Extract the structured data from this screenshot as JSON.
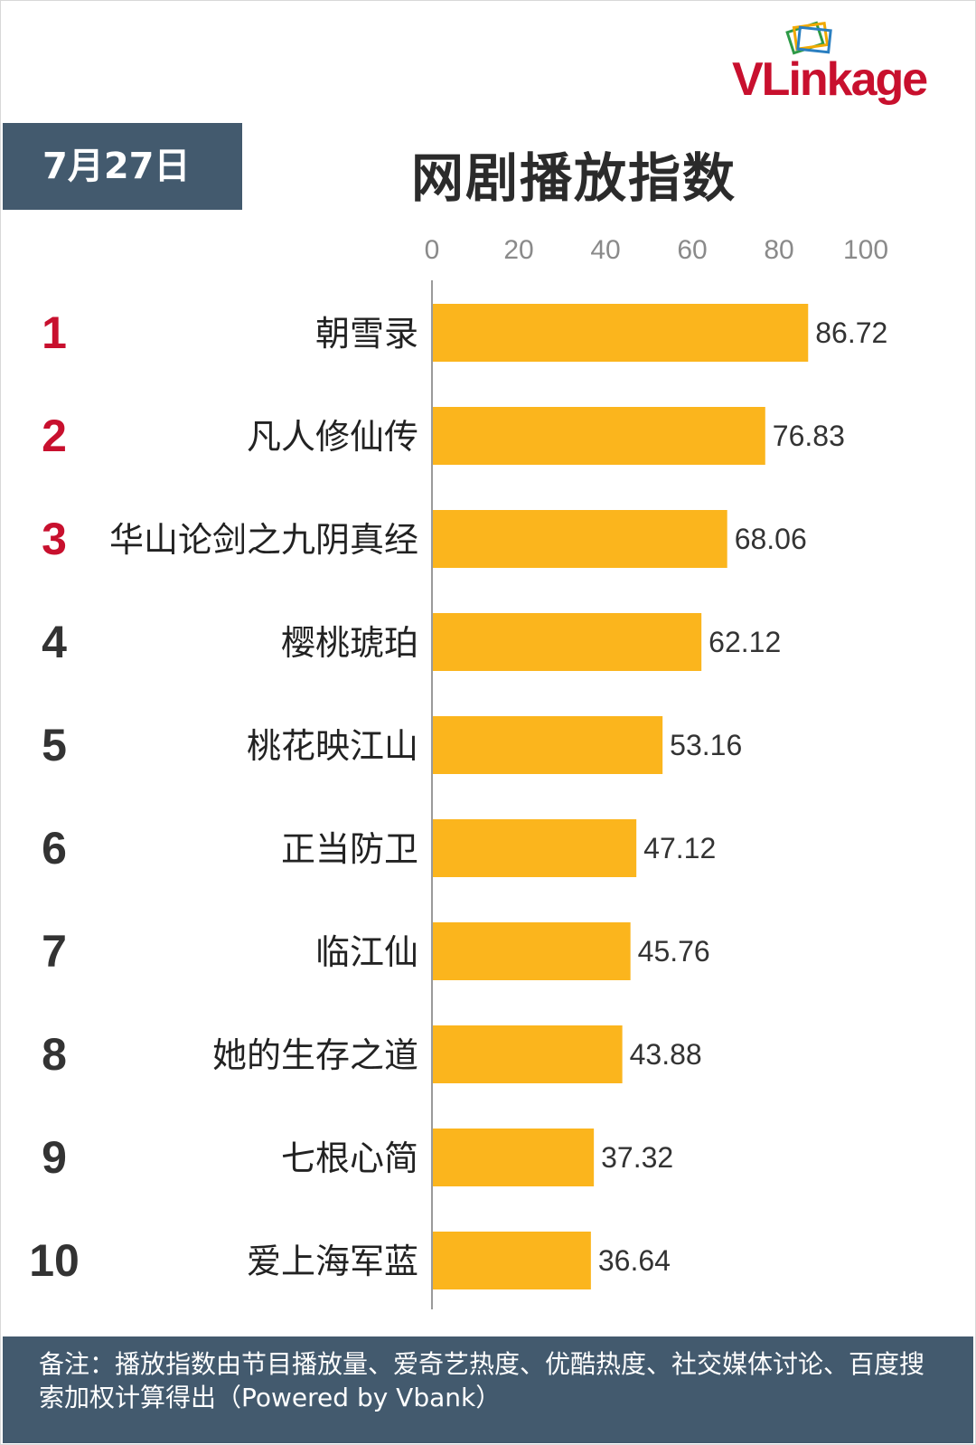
{
  "brand": {
    "name": "VLinkage"
  },
  "header": {
    "date": "7月27日",
    "title": "网剧播放指数"
  },
  "footer": {
    "note": "备注：播放指数由节目播放量、爱奇艺热度、优酷热度、社交媒体讨论、百度搜索加权计算得出（Powered by Vbank）"
  },
  "colors": {
    "bar": "#fbb51d",
    "header_bg": "#435a6e",
    "rank_top": "#c8102e",
    "rank_other": "#333333",
    "brand": "#c8102e"
  },
  "chart_data": {
    "type": "bar",
    "orientation": "horizontal",
    "title": "网剧播放指数",
    "xlim": [
      0,
      100
    ],
    "x_ticks": [
      "0",
      "20",
      "40",
      "60",
      "80",
      "100"
    ],
    "x_tick_position": "top",
    "grid": false,
    "ranks": [
      "1",
      "2",
      "3",
      "4",
      "5",
      "6",
      "7",
      "8",
      "9",
      "10"
    ],
    "categories": [
      "朝雪录",
      "凡人修仙传",
      "华山论剑之九阴真经",
      "樱桃琥珀",
      "桃花映江山",
      "正当防卫",
      "临江仙",
      "她的生存之道",
      "七根心简",
      "爱上海军蓝"
    ],
    "values": [
      86.72,
      76.83,
      68.06,
      62.12,
      53.16,
      47.12,
      45.76,
      43.88,
      37.32,
      36.64
    ],
    "value_labels": [
      "86.72",
      "76.83",
      "68.06",
      "62.12",
      "53.16",
      "47.12",
      "45.76",
      "43.88",
      "37.32",
      "36.64"
    ]
  }
}
